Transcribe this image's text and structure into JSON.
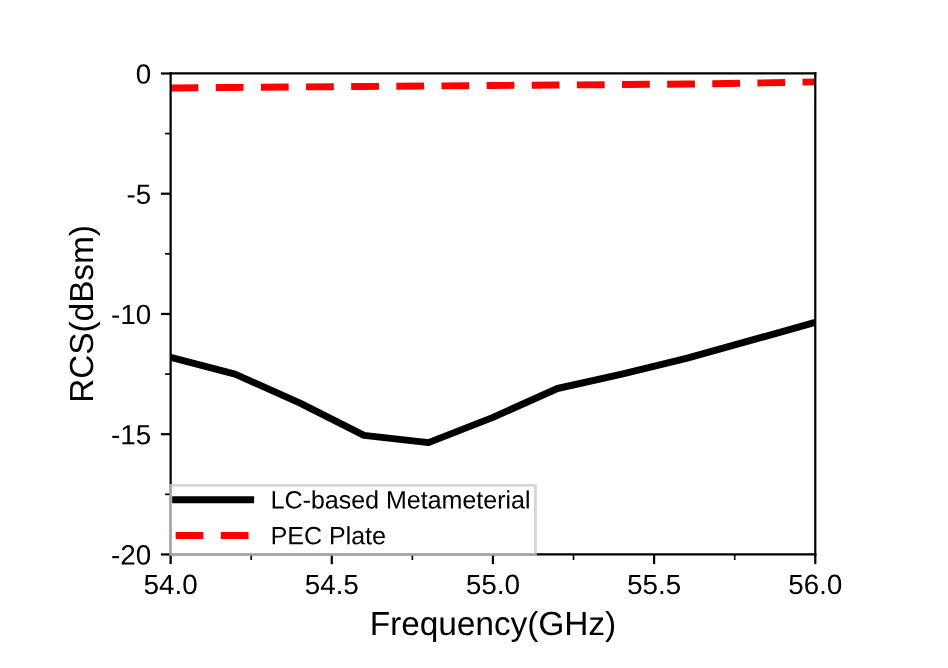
{
  "chart_data": {
    "type": "line",
    "xlabel": "Frequency(GHz)",
    "ylabel": "RCS(dBsm)",
    "x": [
      54.0,
      54.2,
      54.4,
      54.6,
      54.8,
      55.0,
      55.2,
      55.4,
      55.6,
      55.8,
      56.0
    ],
    "series": [
      {
        "name": "LC-based Metameterial",
        "color": "#000000",
        "line_style": "solid",
        "values": [
          -11.8,
          -12.5,
          -13.7,
          -15.05,
          -15.35,
          -14.3,
          -13.1,
          -12.5,
          -11.85,
          -11.1,
          -10.35
        ]
      },
      {
        "name": "PEC Plate",
        "color": "#ff0000",
        "line_style": "dashed",
        "values": [
          -0.6,
          -0.58,
          -0.56,
          -0.54,
          -0.52,
          -0.5,
          -0.48,
          -0.46,
          -0.44,
          -0.4,
          -0.35
        ]
      }
    ],
    "xlim": [
      54.0,
      56.0
    ],
    "xticks": [
      {
        "value": 54.0,
        "label": "54.0"
      },
      {
        "value": 54.5,
        "label": "54.5"
      },
      {
        "value": 55.0,
        "label": "55.0"
      },
      {
        "value": 55.5,
        "label": "55.5"
      },
      {
        "value": 56.0,
        "label": "56.0"
      }
    ],
    "ylim": [
      -20,
      0
    ],
    "yticks": [
      -20,
      -15,
      -10,
      -5,
      0
    ],
    "grid": false,
    "legend": "bottom left",
    "marker": "none"
  }
}
